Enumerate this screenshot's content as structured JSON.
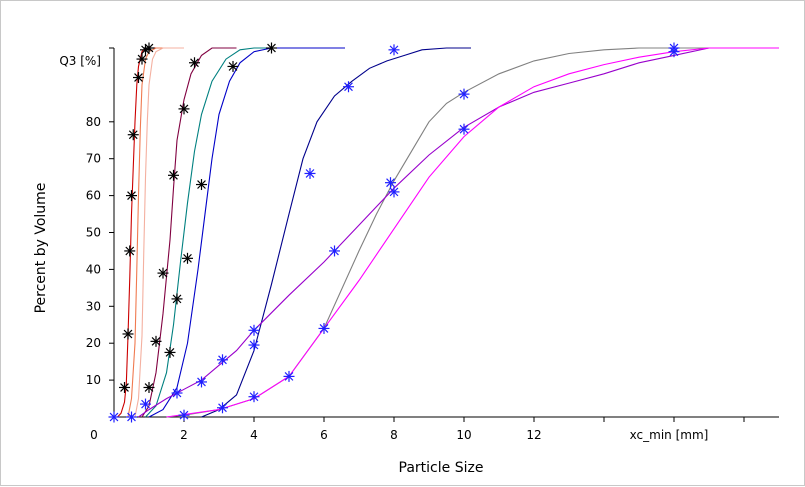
{
  "chart_data": {
    "type": "line",
    "xlabel": "Particle Size",
    "ylabel": "Percent by Volume",
    "x_unit_label": "xc_min [mm]",
    "y_unit_label": "Q3 [%]",
    "xlim": [
      0,
      19
    ],
    "ylim": [
      0,
      100
    ],
    "x_ticks": [
      0,
      2,
      4,
      6,
      8,
      10,
      12
    ],
    "x_tick_labels": [
      "0",
      "2",
      "4",
      "6",
      "8",
      "10",
      "12"
    ],
    "y_ticks": [
      10,
      20,
      30,
      40,
      50,
      60,
      70,
      80
    ],
    "y_tick_labels": [
      "10",
      "20",
      "30",
      "40",
      "50",
      "60",
      "70",
      "80"
    ],
    "grid": false,
    "series": [
      {
        "color": "#cc0000",
        "points": [
          [
            0.1,
            0
          ],
          [
            0.2,
            1
          ],
          [
            0.3,
            4
          ],
          [
            0.35,
            9
          ],
          [
            0.4,
            22
          ],
          [
            0.45,
            38
          ],
          [
            0.5,
            55
          ],
          [
            0.55,
            68
          ],
          [
            0.6,
            80
          ],
          [
            0.65,
            90
          ],
          [
            0.7,
            95
          ],
          [
            0.8,
            99
          ],
          [
            0.9,
            100
          ],
          [
            1.2,
            100
          ]
        ]
      },
      {
        "color": "#f07a50",
        "points": [
          [
            0.4,
            0
          ],
          [
            0.5,
            5
          ],
          [
            0.6,
            20
          ],
          [
            0.65,
            40
          ],
          [
            0.7,
            60
          ],
          [
            0.75,
            78
          ],
          [
            0.8,
            90
          ],
          [
            0.9,
            97
          ],
          [
            1.0,
            99
          ],
          [
            1.2,
            100
          ],
          [
            1.6,
            100
          ]
        ]
      },
      {
        "color": "#f4b0a0",
        "points": [
          [
            0.6,
            0
          ],
          [
            0.7,
            5
          ],
          [
            0.8,
            22
          ],
          [
            0.85,
            45
          ],
          [
            0.9,
            65
          ],
          [
            0.95,
            80
          ],
          [
            1.0,
            90
          ],
          [
            1.1,
            97
          ],
          [
            1.2,
            99
          ],
          [
            1.4,
            100
          ],
          [
            2.0,
            100
          ]
        ]
      },
      {
        "color": "#800040",
        "points": [
          [
            0.8,
            0
          ],
          [
            1.0,
            3
          ],
          [
            1.2,
            12
          ],
          [
            1.4,
            28
          ],
          [
            1.6,
            48
          ],
          [
            1.7,
            62
          ],
          [
            1.8,
            75
          ],
          [
            2.0,
            86
          ],
          [
            2.2,
            93
          ],
          [
            2.5,
            98
          ],
          [
            2.8,
            100
          ],
          [
            3.5,
            100
          ]
        ]
      },
      {
        "color": "#008080",
        "points": [
          [
            0.9,
            0
          ],
          [
            1.2,
            3
          ],
          [
            1.5,
            12
          ],
          [
            1.7,
            25
          ],
          [
            1.9,
            42
          ],
          [
            2.1,
            58
          ],
          [
            2.3,
            72
          ],
          [
            2.5,
            82
          ],
          [
            2.8,
            91
          ],
          [
            3.2,
            97
          ],
          [
            3.6,
            99.5
          ],
          [
            4.0,
            100
          ],
          [
            4.5,
            100
          ]
        ]
      },
      {
        "color": "#0000c8",
        "points": [
          [
            1.0,
            0
          ],
          [
            1.4,
            2
          ],
          [
            1.8,
            8
          ],
          [
            2.1,
            20
          ],
          [
            2.4,
            40
          ],
          [
            2.6,
            55
          ],
          [
            2.8,
            70
          ],
          [
            3.0,
            82
          ],
          [
            3.3,
            91
          ],
          [
            3.6,
            96
          ],
          [
            4.0,
            99
          ],
          [
            4.5,
            100
          ],
          [
            6.6,
            100
          ]
        ]
      },
      {
        "color": "#00008b",
        "points": [
          [
            2.5,
            0
          ],
          [
            3.0,
            2
          ],
          [
            3.5,
            6
          ],
          [
            4.0,
            18
          ],
          [
            4.5,
            36
          ],
          [
            5.0,
            55
          ],
          [
            5.4,
            70
          ],
          [
            5.8,
            80
          ],
          [
            6.3,
            87
          ],
          [
            6.8,
            91
          ],
          [
            7.3,
            94.5
          ],
          [
            7.8,
            96.5
          ],
          [
            8.3,
            98
          ],
          [
            8.8,
            99.5
          ],
          [
            9.5,
            100
          ],
          [
            10.2,
            100
          ]
        ]
      },
      {
        "color": "#808080",
        "points": [
          [
            1.5,
            0
          ],
          [
            2.0,
            0.5
          ],
          [
            3.0,
            2
          ],
          [
            4.0,
            5
          ],
          [
            5.0,
            11
          ],
          [
            6.0,
            24
          ],
          [
            7.0,
            45
          ],
          [
            7.5,
            55
          ],
          [
            8.0,
            64
          ],
          [
            8.5,
            72
          ],
          [
            9.0,
            80
          ],
          [
            9.5,
            85
          ],
          [
            10.0,
            88
          ],
          [
            11.0,
            93
          ],
          [
            12.0,
            96.5
          ],
          [
            13.0,
            98.5
          ],
          [
            14.0,
            99.5
          ],
          [
            15.0,
            100
          ],
          [
            18.0,
            100
          ]
        ]
      },
      {
        "color": "#9900cc",
        "points": [
          [
            0.7,
            0
          ],
          [
            1.0,
            2
          ],
          [
            1.5,
            5
          ],
          [
            2.0,
            7.5
          ],
          [
            2.5,
            10
          ],
          [
            3.0,
            14
          ],
          [
            3.5,
            18
          ],
          [
            4.0,
            23.5
          ],
          [
            5.0,
            33
          ],
          [
            6.0,
            42
          ],
          [
            7.0,
            52
          ],
          [
            8.0,
            62
          ],
          [
            9.0,
            71
          ],
          [
            10.0,
            78.5
          ],
          [
            11.0,
            84
          ],
          [
            12.0,
            88
          ],
          [
            13.0,
            90.5
          ],
          [
            14.0,
            93
          ],
          [
            15.0,
            96
          ],
          [
            16.0,
            98
          ],
          [
            17.0,
            100
          ],
          [
            18.0,
            100
          ]
        ]
      },
      {
        "color": "#ff00ff",
        "points": [
          [
            1.5,
            0
          ],
          [
            3.0,
            2
          ],
          [
            4.0,
            5
          ],
          [
            5.0,
            11
          ],
          [
            6.0,
            24
          ],
          [
            7.0,
            37
          ],
          [
            8.0,
            51
          ],
          [
            9.0,
            65
          ],
          [
            10.0,
            76
          ],
          [
            11.0,
            84
          ],
          [
            12.0,
            89.5
          ],
          [
            13.0,
            93
          ],
          [
            14.0,
            95.5
          ],
          [
            15.0,
            97.5
          ],
          [
            16.0,
            99
          ],
          [
            17.0,
            100
          ],
          [
            19.0,
            100
          ]
        ]
      }
    ],
    "markers": [
      {
        "color": "#000000",
        "points": [
          [
            0.3,
            8
          ],
          [
            0.4,
            22.5
          ],
          [
            0.45,
            45
          ],
          [
            0.5,
            60
          ],
          [
            0.55,
            76.5
          ],
          [
            0.7,
            92
          ],
          [
            0.8,
            97
          ],
          [
            0.9,
            99.5
          ],
          [
            1.0,
            100
          ],
          [
            1.6,
            17.5
          ],
          [
            1.0,
            8
          ],
          [
            1.2,
            20.5
          ],
          [
            1.4,
            39
          ],
          [
            1.7,
            65.5
          ],
          [
            2.0,
            83.5
          ],
          [
            2.3,
            96
          ],
          [
            1.8,
            32
          ],
          [
            2.1,
            43
          ],
          [
            2.5,
            63
          ],
          [
            3.4,
            95
          ],
          [
            4.5,
            100
          ]
        ]
      },
      {
        "color": "#2020ff",
        "points": [
          [
            0,
            0
          ],
          [
            0.9,
            3.5
          ],
          [
            4.0,
            19.5
          ],
          [
            5.6,
            66
          ],
          [
            6.7,
            89.5
          ],
          [
            8.0,
            99.5
          ],
          [
            0.5,
            0
          ],
          [
            1.8,
            6.5
          ],
          [
            2.5,
            9.5
          ],
          [
            3.1,
            15.5
          ],
          [
            4.0,
            23.5
          ],
          [
            6.3,
            45
          ],
          [
            8.0,
            61
          ],
          [
            10.0,
            78
          ],
          [
            16.0,
            100
          ],
          [
            2.0,
            0.5
          ],
          [
            3.1,
            2.5
          ],
          [
            4.0,
            5.5
          ],
          [
            5.0,
            11
          ],
          [
            6.0,
            24
          ],
          [
            7.9,
            63.5
          ],
          [
            10.0,
            87.5
          ],
          [
            16.0,
            99
          ]
        ]
      }
    ]
  }
}
